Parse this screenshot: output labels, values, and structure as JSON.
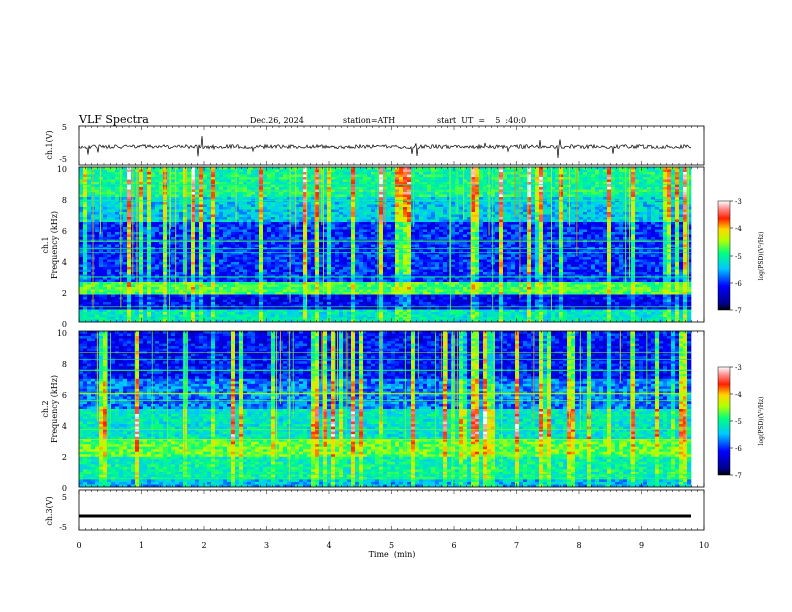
{
  "header": {
    "title": "VLF  Spectra",
    "date": "Dec.26, 2024",
    "station": "station=ATH",
    "start_ut": "start  UT  =    5  :40:0"
  },
  "chart_data": [
    {
      "type": "line",
      "ylabel": "ch.1(V)",
      "ylim": [
        -5,
        5
      ],
      "y_ticks": [
        "5",
        "-5"
      ],
      "series": [
        {
          "values_description_mean": -0.3
        }
      ],
      "x_range_min": [
        0,
        9.8
      ]
    },
    {
      "type": "heatmap",
      "ylabel_line1": "ch.1",
      "ylabel_line2": "Frequency (kHz)",
      "ylim": [
        0,
        10
      ],
      "y_ticks": [
        "0",
        "2",
        "4",
        "6",
        "8",
        "10"
      ],
      "colorbar": {
        "label": "log(PSD)(V²/Hz)",
        "ticks": [
          "-3",
          "-4",
          "-5",
          "-6",
          "-7"
        ],
        "range": [
          -7,
          -3
        ]
      }
    },
    {
      "type": "heatmap",
      "ylabel_line1": "ch.2",
      "ylabel_line2": "Frequency (kHz)",
      "ylim": [
        0,
        10
      ],
      "y_ticks": [
        "0",
        "2",
        "4",
        "6",
        "8",
        "10"
      ],
      "colorbar": {
        "label": "log(PSD)(V²/Hz)",
        "ticks": [
          "-3",
          "-4",
          "-5",
          "-6",
          "-7"
        ],
        "range": [
          -7,
          -3
        ]
      }
    },
    {
      "type": "line",
      "ylabel": "ch.3(V)",
      "ylim": [
        -5,
        5
      ],
      "y_ticks": [
        "5",
        "-5"
      ],
      "series": [
        {
          "constant_value": -1.5
        }
      ],
      "xlabel": "Time  (min)",
      "x_ticks": [
        "0",
        "1",
        "2",
        "3",
        "4",
        "5",
        "6",
        "7",
        "8",
        "9",
        "10"
      ],
      "xlim": [
        0,
        10
      ]
    }
  ]
}
